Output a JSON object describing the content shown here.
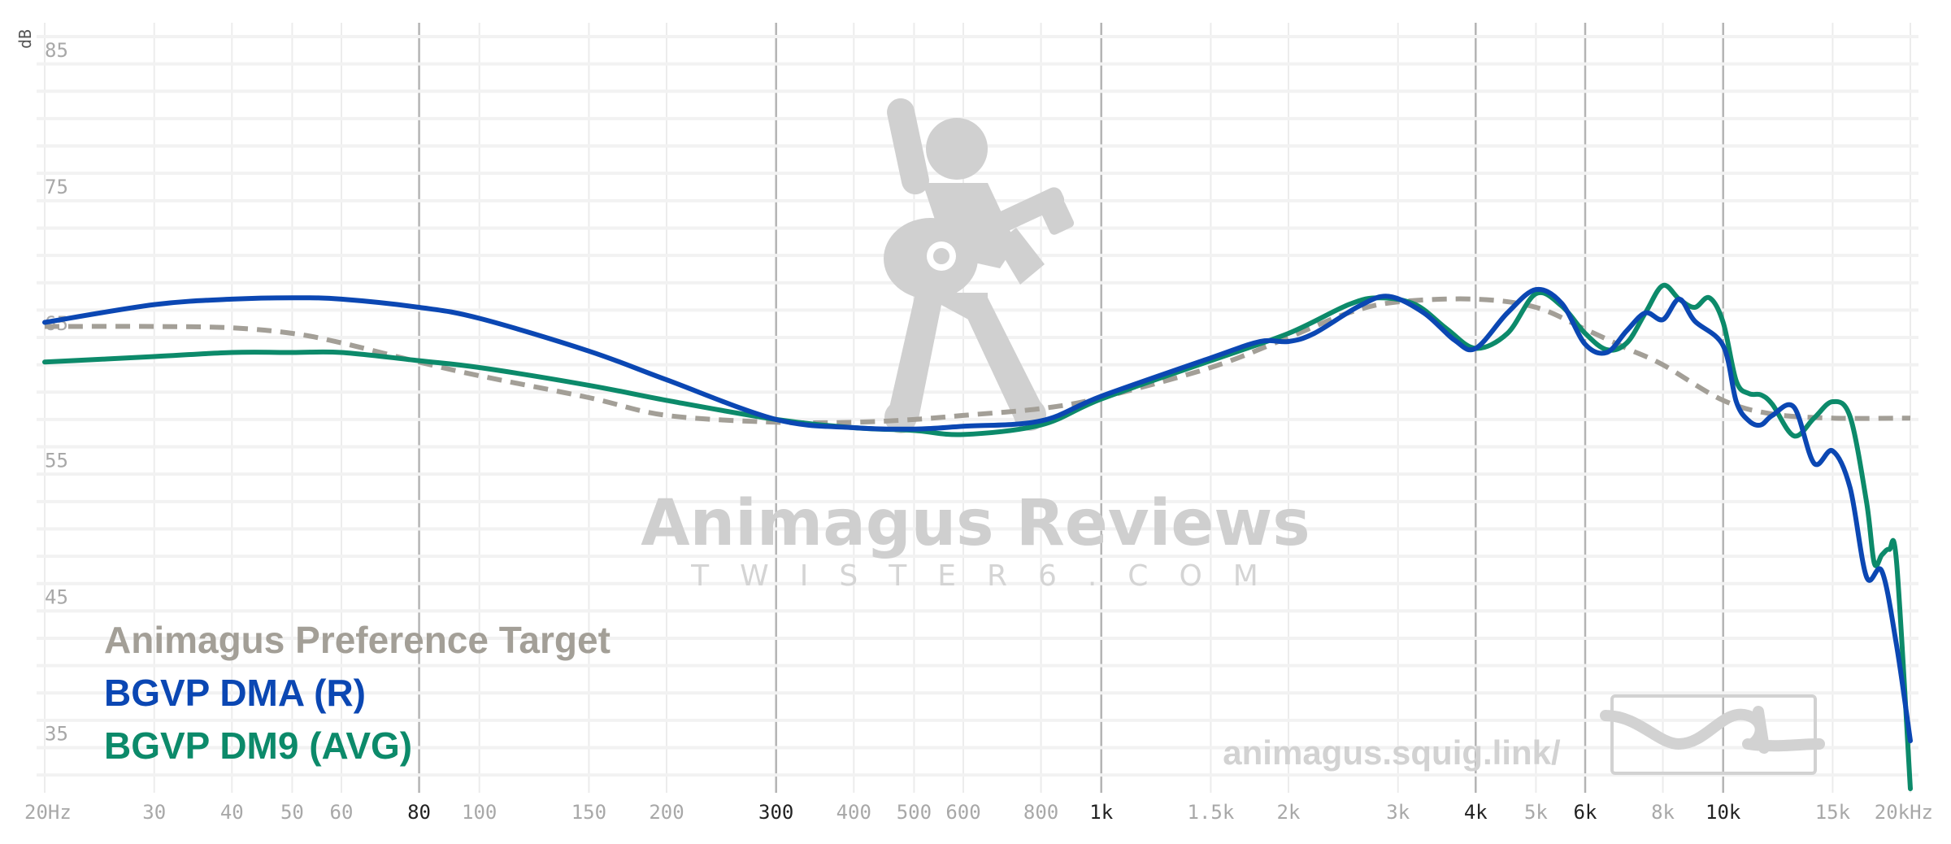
{
  "chart_data": {
    "type": "line",
    "xscale": "log",
    "xlim": [
      20,
      20000
    ],
    "ylim": [
      31,
      86
    ],
    "ylabel": "dB",
    "x_ticks": [
      {
        "value": 20,
        "label": "20Hz",
        "major": false
      },
      {
        "value": 30,
        "label": "30",
        "major": false
      },
      {
        "value": 40,
        "label": "40",
        "major": false
      },
      {
        "value": 50,
        "label": "50",
        "major": false
      },
      {
        "value": 60,
        "label": "60",
        "major": false
      },
      {
        "value": 80,
        "label": "80",
        "major": true
      },
      {
        "value": 100,
        "label": "100",
        "major": false
      },
      {
        "value": 150,
        "label": "150",
        "major": false
      },
      {
        "value": 200,
        "label": "200",
        "major": false
      },
      {
        "value": 300,
        "label": "300",
        "major": true
      },
      {
        "value": 400,
        "label": "400",
        "major": false
      },
      {
        "value": 500,
        "label": "500",
        "major": false
      },
      {
        "value": 600,
        "label": "600",
        "major": false
      },
      {
        "value": 800,
        "label": "800",
        "major": false
      },
      {
        "value": 1000,
        "label": "1k",
        "major": true
      },
      {
        "value": 1500,
        "label": "1.5k",
        "major": false
      },
      {
        "value": 2000,
        "label": "2k",
        "major": false
      },
      {
        "value": 3000,
        "label": "3k",
        "major": false
      },
      {
        "value": 4000,
        "label": "4k",
        "major": true
      },
      {
        "value": 5000,
        "label": "5k",
        "major": false
      },
      {
        "value": 6000,
        "label": "6k",
        "major": true
      },
      {
        "value": 8000,
        "label": "8k",
        "major": false
      },
      {
        "value": 10000,
        "label": "10k",
        "major": true
      },
      {
        "value": 15000,
        "label": "15k",
        "major": false
      },
      {
        "value": 20000,
        "label": "20kHz",
        "major": false
      }
    ],
    "y_ticks": [
      {
        "value": 85,
        "label": "85"
      },
      {
        "value": 75,
        "label": "75"
      },
      {
        "value": 65,
        "label": "65"
      },
      {
        "value": 55,
        "label": "55"
      },
      {
        "value": 45,
        "label": "45"
      },
      {
        "value": 35,
        "label": "35"
      }
    ],
    "grid": true,
    "legend_position": "bottom-left",
    "series": [
      {
        "name": "Animagus Preference Target",
        "color": "#a39f97",
        "dashed": true,
        "x": [
          20,
          30,
          40,
          50,
          60,
          80,
          100,
          150,
          200,
          300,
          400,
          500,
          600,
          800,
          1000,
          1500,
          2000,
          2500,
          3000,
          4000,
          5000,
          6000,
          7000,
          8000,
          10000,
          12000,
          15000,
          20000
        ],
        "y": [
          64.8,
          64.8,
          64.7,
          64.3,
          63.6,
          62.2,
          61.2,
          59.6,
          58.3,
          57.8,
          57.8,
          58.0,
          58.3,
          58.8,
          59.6,
          61.8,
          64.0,
          65.8,
          66.6,
          66.8,
          66.2,
          64.6,
          63.2,
          62.0,
          59.4,
          58.4,
          58.1,
          58.1
        ]
      },
      {
        "name": "BGVP DMA (R)",
        "color": "#0b47b3",
        "dashed": false,
        "x": [
          20,
          30,
          40,
          50,
          60,
          80,
          100,
          150,
          200,
          300,
          400,
          500,
          600,
          800,
          1000,
          1500,
          1800,
          2000,
          2200,
          2600,
          2900,
          3300,
          3700,
          4000,
          4500,
          5000,
          5500,
          6000,
          6500,
          7000,
          7500,
          8000,
          8500,
          9000,
          10000,
          10500,
          11000,
          11500,
          12000,
          13000,
          14000,
          15000,
          16000,
          17000,
          18000,
          19000,
          20000
        ],
        "y": [
          65.1,
          66.4,
          66.8,
          66.9,
          66.8,
          66.2,
          65.4,
          63.0,
          60.9,
          58.0,
          57.4,
          57.3,
          57.5,
          57.9,
          59.7,
          62.5,
          63.7,
          63.7,
          64.3,
          66.3,
          67.0,
          65.8,
          63.8,
          63.2,
          65.8,
          67.5,
          66.5,
          63.5,
          62.9,
          64.5,
          65.8,
          65.3,
          66.8,
          65.2,
          63.4,
          59.3,
          57.9,
          57.6,
          58.3,
          58.9,
          54.8,
          55.7,
          53.0,
          46.5,
          46.9,
          41.5,
          34.5
        ]
      },
      {
        "name": "BGVP DM9 (AVG)",
        "color": "#0c8a6a",
        "dashed": false,
        "x": [
          20,
          30,
          40,
          50,
          60,
          80,
          100,
          150,
          200,
          300,
          400,
          500,
          600,
          800,
          1000,
          1500,
          2000,
          2500,
          2800,
          3200,
          3600,
          4000,
          4500,
          5000,
          5500,
          6000,
          6500,
          7000,
          7500,
          8000,
          8500,
          9000,
          9500,
          10000,
          10500,
          11000,
          11500,
          12000,
          13000,
          14000,
          15000,
          16000,
          17000,
          17500,
          18000,
          18500,
          19000,
          20000
        ],
        "y": [
          62.2,
          62.6,
          62.9,
          62.9,
          62.9,
          62.3,
          61.8,
          60.5,
          59.4,
          58.0,
          57.4,
          57.2,
          56.9,
          57.6,
          59.5,
          62.3,
          64.3,
          66.4,
          66.9,
          66.4,
          64.6,
          63.2,
          64.3,
          67.2,
          66.3,
          64.3,
          63.1,
          63.6,
          65.8,
          67.8,
          66.8,
          66.2,
          66.9,
          65.1,
          60.8,
          59.9,
          59.8,
          59.1,
          56.8,
          58.1,
          59.3,
          58.2,
          52.0,
          47.5,
          48.1,
          48.5,
          47.6,
          31.0
        ]
      }
    ]
  },
  "watermark": {
    "title": "Animagus Reviews",
    "subtitle": "TWISTER6.COM",
    "url": "animagus.squig.link/",
    "icon": "guitar-player-icon",
    "logo": "squig-logo"
  }
}
